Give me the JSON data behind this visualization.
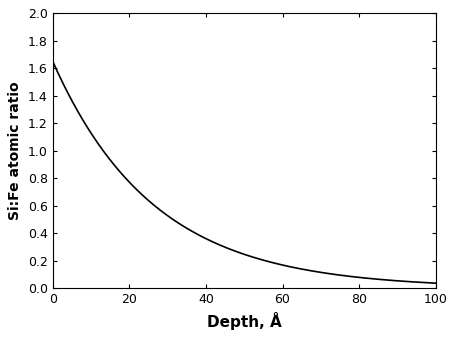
{
  "title": "",
  "xlabel": "Depth, Å",
  "ylabel": "Si:Fe atomic ratio",
  "xlim": [
    0,
    100
  ],
  "ylim": [
    0.0,
    2.0
  ],
  "xticks": [
    0,
    20,
    40,
    60,
    80,
    100
  ],
  "yticks": [
    0.0,
    0.2,
    0.4,
    0.6,
    0.8,
    1.0,
    1.2,
    1.4,
    1.6,
    1.8,
    2.0
  ],
  "curve_start": 1.65,
  "decay_constant": 0.038,
  "line_color": "#000000",
  "line_width": 1.2,
  "background_color": "#ffffff",
  "xlabel_fontsize": 11,
  "ylabel_fontsize": 10,
  "tick_fontsize": 9
}
